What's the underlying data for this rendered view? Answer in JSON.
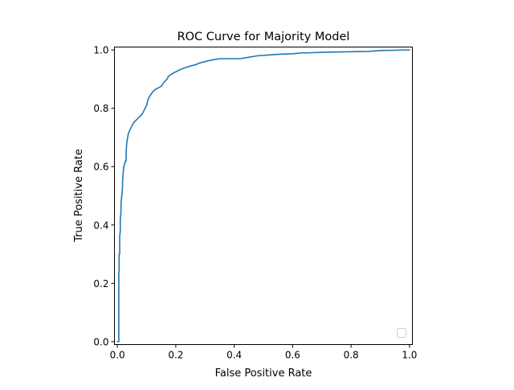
{
  "chart_data": {
    "type": "line",
    "title": "ROC Curve for Majority Model",
    "xlabel": "False Positive Rate",
    "ylabel": "True Positive Rate",
    "xlim": [
      -0.01,
      1.01
    ],
    "ylim": [
      -0.01,
      1.01
    ],
    "xticks": [
      "0.0",
      "0.2",
      "0.4",
      "0.6",
      "0.8",
      "1.0"
    ],
    "yticks": [
      "0.0",
      "0.2",
      "0.4",
      "0.6",
      "0.8",
      "1.0"
    ],
    "grid": false,
    "legend": {
      "placement": "lower-right",
      "entries": []
    },
    "series": [
      {
        "color": "#1f77b4",
        "points": [
          [
            0.0,
            0.0
          ],
          [
            0.005,
            0.0
          ],
          [
            0.005,
            0.05
          ],
          [
            0.005,
            0.24
          ],
          [
            0.006,
            0.24
          ],
          [
            0.006,
            0.3
          ],
          [
            0.008,
            0.3
          ],
          [
            0.008,
            0.36
          ],
          [
            0.01,
            0.38
          ],
          [
            0.01,
            0.42
          ],
          [
            0.012,
            0.44
          ],
          [
            0.013,
            0.48
          ],
          [
            0.015,
            0.5
          ],
          [
            0.017,
            0.52
          ],
          [
            0.018,
            0.55
          ],
          [
            0.02,
            0.58
          ],
          [
            0.022,
            0.6
          ],
          [
            0.025,
            0.61
          ],
          [
            0.028,
            0.62
          ],
          [
            0.03,
            0.62
          ],
          [
            0.03,
            0.65
          ],
          [
            0.032,
            0.68
          ],
          [
            0.035,
            0.7
          ],
          [
            0.037,
            0.71
          ],
          [
            0.04,
            0.72
          ],
          [
            0.045,
            0.73
          ],
          [
            0.05,
            0.74
          ],
          [
            0.055,
            0.75
          ],
          [
            0.06,
            0.755
          ],
          [
            0.065,
            0.76
          ],
          [
            0.07,
            0.765
          ],
          [
            0.075,
            0.77
          ],
          [
            0.08,
            0.775
          ],
          [
            0.085,
            0.78
          ],
          [
            0.09,
            0.79
          ],
          [
            0.1,
            0.81
          ],
          [
            0.105,
            0.83
          ],
          [
            0.11,
            0.84
          ],
          [
            0.12,
            0.855
          ],
          [
            0.13,
            0.865
          ],
          [
            0.14,
            0.87
          ],
          [
            0.15,
            0.875
          ],
          [
            0.16,
            0.89
          ],
          [
            0.17,
            0.9
          ],
          [
            0.175,
            0.91
          ],
          [
            0.19,
            0.92
          ],
          [
            0.2,
            0.925
          ],
          [
            0.21,
            0.93
          ],
          [
            0.22,
            0.935
          ],
          [
            0.235,
            0.94
          ],
          [
            0.25,
            0.945
          ],
          [
            0.27,
            0.95
          ],
          [
            0.28,
            0.955
          ],
          [
            0.3,
            0.96
          ],
          [
            0.32,
            0.965
          ],
          [
            0.35,
            0.97
          ],
          [
            0.42,
            0.97
          ],
          [
            0.45,
            0.975
          ],
          [
            0.48,
            0.98
          ],
          [
            0.52,
            0.983
          ],
          [
            0.55,
            0.985
          ],
          [
            0.6,
            0.987
          ],
          [
            0.63,
            0.99
          ],
          [
            0.65,
            0.99
          ],
          [
            0.7,
            0.992
          ],
          [
            0.75,
            0.993
          ],
          [
            0.8,
            0.994
          ],
          [
            0.86,
            0.995
          ],
          [
            0.9,
            0.998
          ],
          [
            0.95,
            0.999
          ],
          [
            0.98,
            1.0
          ],
          [
            1.0,
            1.0
          ]
        ]
      }
    ]
  }
}
